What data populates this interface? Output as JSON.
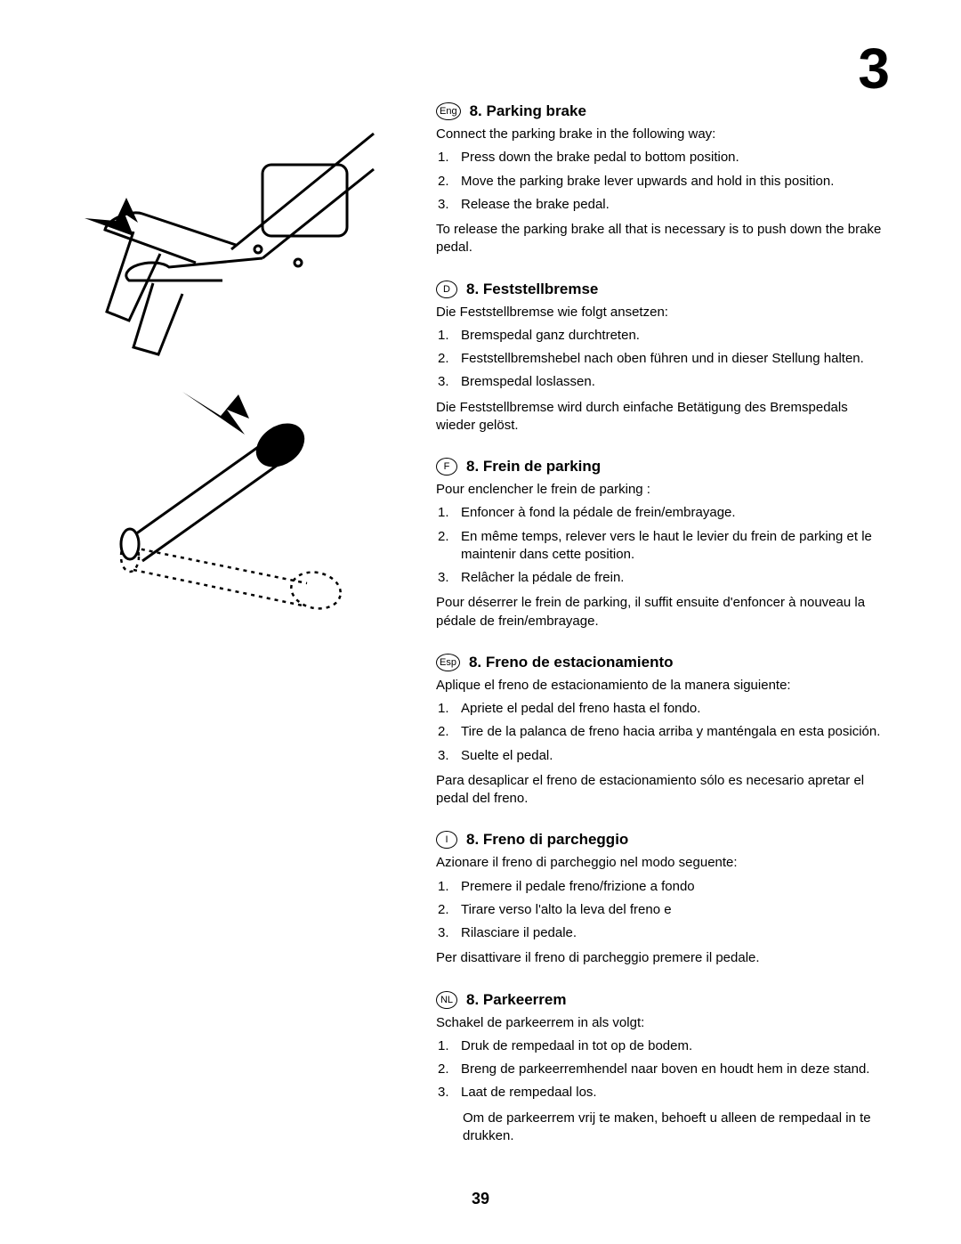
{
  "page_number_top": "3",
  "page_number_bottom": "39",
  "illustrations": {
    "top_svg_bg": "#ffffff",
    "stroke": "#000000",
    "arrow_fill": "#000000"
  },
  "sections": [
    {
      "lang": "Eng",
      "title": "8. Parking brake",
      "intro": "Connect the parking brake in the following way:",
      "steps": [
        "Press down the brake pedal to bottom position.",
        "Move the parking brake lever upwards and hold in this position.",
        "Release the brake pedal."
      ],
      "outro": "To release the parking brake all that is necessary is to push down the brake pedal."
    },
    {
      "lang": "D",
      "title": "8. Feststellbremse",
      "intro": "Die Feststellbremse wie folgt ansetzen:",
      "steps": [
        "Bremspedal ganz durchtreten.",
        "Feststellbremshebel nach oben führen und in dieser Stellung halten.",
        "Bremspedal loslassen."
      ],
      "outro": "Die Feststellbremse wird durch einfache Betätigung des Bremspedals wieder gelöst."
    },
    {
      "lang": "F",
      "title": "8. Frein de parking",
      "intro": "Pour enclencher le frein de parking :",
      "steps": [
        "Enfoncer à fond la pédale de frein/embrayage.",
        "En même temps, relever vers le haut le levier du frein de parking et le maintenir dans cette position.",
        "Relâcher la pédale de frein."
      ],
      "outro": "Pour déserrer le frein de parking, il suffit ensuite d'enfoncer à nouveau la pédale de frein/embrayage."
    },
    {
      "lang": "Esp",
      "title": "8. Freno de estacionamiento",
      "intro": "Aplique el freno de estacionamiento de la manera siguiente:",
      "steps": [
        "Apriete el pedal del freno hasta el fondo.",
        "Tire de la palanca de freno hacia arriba y manténgala en esta posición.",
        "Suelte el pedal."
      ],
      "outro": "Para desaplicar el freno de estacionamiento sólo es necesario apretar el pedal del freno."
    },
    {
      "lang": "I",
      "title": "8. Freno di parcheggio",
      "intro": "Azionare il freno di parcheggio nel modo seguente:",
      "steps": [
        "Premere il pedale freno/frizione a fondo",
        "Tirare verso l'alto la leva del freno e",
        "Rilasciare il pedale."
      ],
      "outro": "Per disattivare il freno di parcheggio premere il pedale."
    },
    {
      "lang": "NL",
      "title": "8. Parkeerrem",
      "intro": "Schakel de parkeerrem in als volgt:",
      "steps": [
        "Druk de rempedaal in tot op de bodem.",
        "Breng de parkeerremhendel naar boven en houdt hem in deze stand.",
        "Laat de rempedaal los."
      ],
      "outro": "Om de parkeerrem vrij te maken, behoeft u alleen de rempedaal in te drukken.",
      "outro_indent": true
    }
  ]
}
